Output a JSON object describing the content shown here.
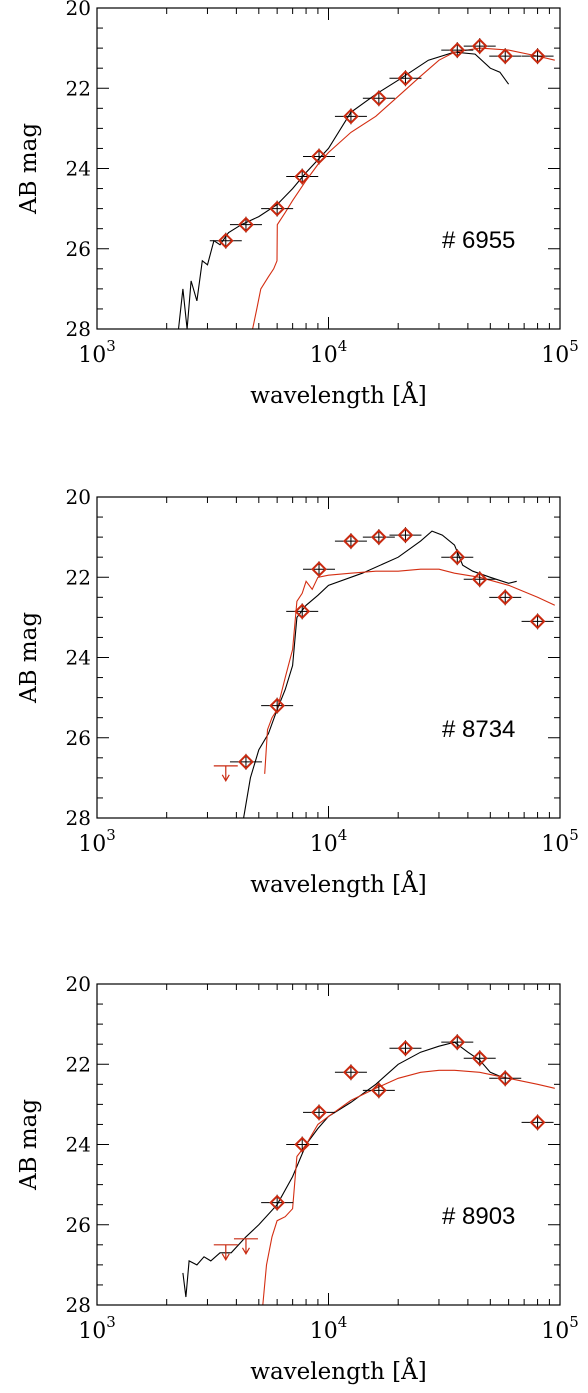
{
  "colors": {
    "model_black": "#000000",
    "model_red": "#d42e12",
    "marker": "#c92a10",
    "axis": "#000000"
  },
  "chart_data": [
    {
      "type": "scatter",
      "id": "# 6955",
      "label": "# 6955",
      "xlabel": "wavelength [Å]",
      "ylabel": "AB mag",
      "xscale": "log",
      "xlim": [
        1000,
        100000
      ],
      "ylim": [
        28,
        20
      ],
      "y_ticks": [
        "20",
        "22",
        "24",
        "26",
        "28"
      ],
      "x_ticks": [
        {
          "base": "10",
          "exp": "3"
        },
        {
          "base": "10",
          "exp": "4"
        },
        {
          "base": "10",
          "exp": "5"
        }
      ],
      "points": [
        {
          "x": 3600,
          "y": 25.8
        },
        {
          "x": 4400,
          "y": 25.4
        },
        {
          "x": 6000,
          "y": 25.0
        },
        {
          "x": 7700,
          "y": 24.2
        },
        {
          "x": 9100,
          "y": 23.7
        },
        {
          "x": 12500,
          "y": 22.7
        },
        {
          "x": 16500,
          "y": 22.25
        },
        {
          "x": 21500,
          "y": 21.75
        },
        {
          "x": 36000,
          "y": 21.05
        },
        {
          "x": 45000,
          "y": 20.95
        },
        {
          "x": 58000,
          "y": 21.2
        },
        {
          "x": 80000,
          "y": 21.2
        }
      ],
      "upper_limits": [],
      "black_model": [
        [
          2250,
          28.0
        ],
        [
          2350,
          27.0
        ],
        [
          2450,
          28.0
        ],
        [
          2550,
          26.8
        ],
        [
          2700,
          27.3
        ],
        [
          2850,
          26.3
        ],
        [
          3000,
          26.4
        ],
        [
          3200,
          25.8
        ],
        [
          3400,
          25.9
        ],
        [
          3700,
          25.6
        ],
        [
          4200,
          25.4
        ],
        [
          5000,
          25.2
        ],
        [
          6000,
          24.9
        ],
        [
          7000,
          24.5
        ],
        [
          8000,
          24.1
        ],
        [
          10000,
          23.5
        ],
        [
          12500,
          22.6
        ],
        [
          16000,
          22.15
        ],
        [
          20000,
          21.8
        ],
        [
          27000,
          21.3
        ],
        [
          35000,
          21.1
        ],
        [
          43000,
          21.15
        ],
        [
          50000,
          21.5
        ],
        [
          55000,
          21.6
        ],
        [
          60000,
          21.9
        ]
      ],
      "red_model": [
        [
          4700,
          28.0
        ],
        [
          4900,
          27.5
        ],
        [
          5100,
          27.0
        ],
        [
          5500,
          26.7
        ],
        [
          5800,
          26.5
        ],
        [
          5990,
          26.3
        ],
        [
          6010,
          25.4
        ],
        [
          6500,
          25.1
        ],
        [
          7000,
          24.8
        ],
        [
          8000,
          24.3
        ],
        [
          9000,
          23.9
        ],
        [
          10000,
          23.6
        ],
        [
          12500,
          23.1
        ],
        [
          16000,
          22.7
        ],
        [
          20000,
          22.2
        ],
        [
          25000,
          21.7
        ],
        [
          30000,
          21.3
        ],
        [
          35000,
          21.1
        ],
        [
          45000,
          21.0
        ],
        [
          60000,
          21.05
        ],
        [
          80000,
          21.2
        ],
        [
          95000,
          21.3
        ]
      ]
    },
    {
      "type": "scatter",
      "id": "# 8734",
      "label": "# 8734",
      "xlabel": "wavelength [Å]",
      "ylabel": "AB mag",
      "xscale": "log",
      "xlim": [
        1000,
        100000
      ],
      "ylim": [
        28,
        20
      ],
      "y_ticks": [
        "20",
        "22",
        "24",
        "26",
        "28"
      ],
      "x_ticks": [
        {
          "base": "10",
          "exp": "3"
        },
        {
          "base": "10",
          "exp": "4"
        },
        {
          "base": "10",
          "exp": "5"
        }
      ],
      "points": [
        {
          "x": 4400,
          "y": 26.6
        },
        {
          "x": 6000,
          "y": 25.2
        },
        {
          "x": 7700,
          "y": 22.85
        },
        {
          "x": 9100,
          "y": 21.8
        },
        {
          "x": 12500,
          "y": 21.1
        },
        {
          "x": 16500,
          "y": 21.0
        },
        {
          "x": 21500,
          "y": 20.95
        },
        {
          "x": 36000,
          "y": 21.5
        },
        {
          "x": 45000,
          "y": 22.05
        },
        {
          "x": 58000,
          "y": 22.5
        },
        {
          "x": 80000,
          "y": 23.1
        }
      ],
      "upper_limits": [
        {
          "x": 3600,
          "y": 26.7
        }
      ],
      "black_model": [
        [
          4300,
          28.0
        ],
        [
          4600,
          27.0
        ],
        [
          5000,
          26.3
        ],
        [
          5500,
          25.9
        ],
        [
          6000,
          25.3
        ],
        [
          6500,
          24.8
        ],
        [
          7000,
          24.2
        ],
        [
          7300,
          23.0
        ],
        [
          8000,
          22.7
        ],
        [
          9000,
          22.45
        ],
        [
          10000,
          22.2
        ],
        [
          14000,
          21.9
        ],
        [
          20000,
          21.5
        ],
        [
          25000,
          21.1
        ],
        [
          28000,
          20.85
        ],
        [
          31000,
          20.95
        ],
        [
          35000,
          21.2
        ],
        [
          38000,
          21.7
        ],
        [
          42000,
          21.85
        ],
        [
          50000,
          22.0
        ],
        [
          60000,
          22.15
        ],
        [
          65000,
          22.1
        ]
      ],
      "red_model": [
        [
          5300,
          26.9
        ],
        [
          5450,
          25.8
        ],
        [
          5700,
          25.5
        ],
        [
          6000,
          25.3
        ],
        [
          6500,
          24.5
        ],
        [
          7000,
          23.8
        ],
        [
          7300,
          22.6
        ],
        [
          7700,
          22.4
        ],
        [
          8000,
          22.1
        ],
        [
          8500,
          22.3
        ],
        [
          9000,
          22.0
        ],
        [
          10000,
          21.95
        ],
        [
          12500,
          21.9
        ],
        [
          16000,
          21.85
        ],
        [
          20000,
          21.85
        ],
        [
          25000,
          21.8
        ],
        [
          30000,
          21.8
        ],
        [
          35000,
          21.9
        ],
        [
          45000,
          22.0
        ],
        [
          60000,
          22.2
        ],
        [
          80000,
          22.5
        ],
        [
          95000,
          22.7
        ]
      ]
    },
    {
      "type": "scatter",
      "id": "# 8903",
      "label": "# 8903",
      "xlabel": "wavelength [Å]",
      "ylabel": "AB mag",
      "xscale": "log",
      "xlim": [
        1000,
        100000
      ],
      "ylim": [
        28,
        20
      ],
      "y_ticks": [
        "20",
        "22",
        "24",
        "26",
        "28"
      ],
      "x_ticks": [
        {
          "base": "10",
          "exp": "3"
        },
        {
          "base": "10",
          "exp": "4"
        },
        {
          "base": "10",
          "exp": "5"
        }
      ],
      "points": [
        {
          "x": 6000,
          "y": 25.45
        },
        {
          "x": 7700,
          "y": 24.0
        },
        {
          "x": 9100,
          "y": 23.2
        },
        {
          "x": 12500,
          "y": 22.2
        },
        {
          "x": 16500,
          "y": 22.65
        },
        {
          "x": 21500,
          "y": 21.6
        },
        {
          "x": 36000,
          "y": 21.45
        },
        {
          "x": 45000,
          "y": 21.85
        },
        {
          "x": 58000,
          "y": 22.35
        },
        {
          "x": 80000,
          "y": 23.45
        }
      ],
      "upper_limits": [
        {
          "x": 3600,
          "y": 26.5
        },
        {
          "x": 4400,
          "y": 26.35
        }
      ],
      "black_model": [
        [
          2350,
          27.2
        ],
        [
          2420,
          27.8
        ],
        [
          2500,
          26.9
        ],
        [
          2700,
          27.0
        ],
        [
          2900,
          26.8
        ],
        [
          3100,
          26.9
        ],
        [
          3400,
          26.7
        ],
        [
          3800,
          26.7
        ],
        [
          4400,
          26.3
        ],
        [
          5000,
          26.0
        ],
        [
          6000,
          25.5
        ],
        [
          7000,
          24.8
        ],
        [
          8000,
          24.0
        ],
        [
          9000,
          23.6
        ],
        [
          10000,
          23.3
        ],
        [
          12500,
          22.95
        ],
        [
          16000,
          22.5
        ],
        [
          20000,
          22.0
        ],
        [
          25000,
          21.7
        ],
        [
          30000,
          21.55
        ],
        [
          35000,
          21.45
        ],
        [
          40000,
          21.7
        ],
        [
          45000,
          21.9
        ],
        [
          50000,
          22.2
        ],
        [
          55000,
          22.3
        ]
      ],
      "red_model": [
        [
          5200,
          28.0
        ],
        [
          5400,
          27.0
        ],
        [
          5700,
          26.3
        ],
        [
          6000,
          25.9
        ],
        [
          6500,
          25.8
        ],
        [
          7000,
          25.6
        ],
        [
          7300,
          24.3
        ],
        [
          8000,
          24.0
        ],
        [
          9000,
          23.5
        ],
        [
          10000,
          23.3
        ],
        [
          12500,
          22.9
        ],
        [
          16000,
          22.6
        ],
        [
          20000,
          22.35
        ],
        [
          25000,
          22.2
        ],
        [
          30000,
          22.15
        ],
        [
          35000,
          22.15
        ],
        [
          45000,
          22.2
        ],
        [
          60000,
          22.35
        ],
        [
          80000,
          22.5
        ],
        [
          95000,
          22.6
        ]
      ]
    }
  ]
}
